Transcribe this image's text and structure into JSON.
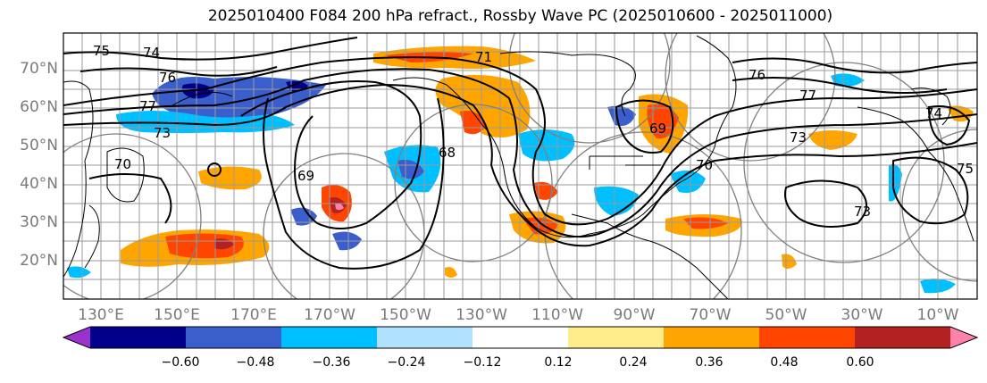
{
  "title": "2025010400 F084 200 hPa refract., Rossby Wave PC (2025010600 - 2025011000)",
  "map": {
    "latitude_labels": [
      "70°N",
      "60°N",
      "50°N",
      "40°N",
      "30°N",
      "20°N"
    ],
    "longitude_labels": [
      "130°E",
      "150°E",
      "170°E",
      "170°W",
      "150°W",
      "130°W",
      "110°W",
      "90°W",
      "70°W",
      "50°W",
      "30°W",
      "10°W"
    ],
    "contour_labels": [
      "74",
      "75",
      "76",
      "77",
      "73",
      "70",
      "69",
      "71",
      "68",
      "69",
      "70",
      "76",
      "77",
      "73",
      "74",
      "75",
      "73"
    ],
    "contour_color": "#000000",
    "overlay_circle_color": "#808080"
  },
  "colorbar": {
    "tick_labels": [
      "−0.60",
      "−0.48",
      "−0.36",
      "−0.24",
      "−0.12",
      "0.12",
      "0.24",
      "0.36",
      "0.48",
      "0.60"
    ],
    "colors": [
      "#9a32cd",
      "#00008b",
      "#3a5fcd",
      "#00bfff",
      "#b0e2ff",
      "#ffffff",
      "#ffec8b",
      "#ffa500",
      "#ff4500",
      "#b22222",
      "#ff82ab"
    ]
  }
}
